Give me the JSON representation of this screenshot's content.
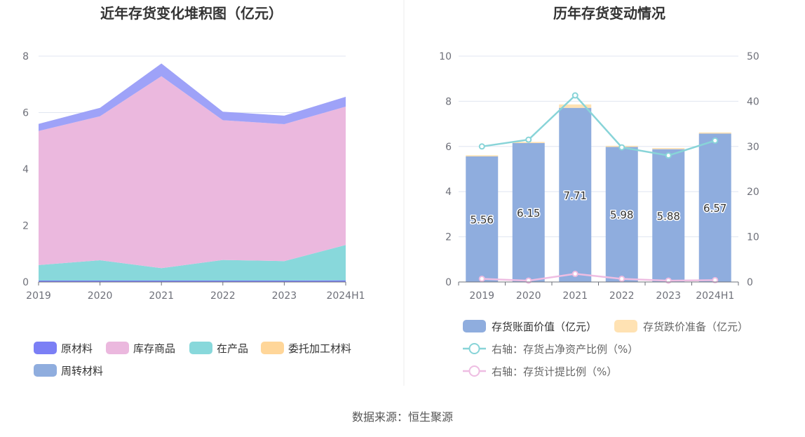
{
  "source_text": "数据来源：恒生聚源",
  "chart_data": [
    {
      "type": "area",
      "stacked": true,
      "title": "近年存货变化堆积图（亿元）",
      "categories": [
        "2019",
        "2020",
        "2021",
        "2022",
        "2023",
        "2024H1"
      ],
      "ylim": [
        0,
        8
      ],
      "yticks": [
        "0",
        "2",
        "4",
        "6",
        "8"
      ],
      "grid": true,
      "legend_position": "bottom",
      "series": [
        {
          "name": "原材料",
          "color": "#7b7ff5",
          "values": [
            0.05,
            0.05,
            0.05,
            0.05,
            0.05,
            0.06
          ]
        },
        {
          "name": "库存商品",
          "color": "#ebb8de",
          "values": [
            4.75,
            5.1,
            6.8,
            4.95,
            4.85,
            4.9
          ]
        },
        {
          "name": "在产品",
          "color": "#88d8db",
          "values": [
            0.55,
            0.72,
            0.44,
            0.73,
            0.69,
            1.25
          ]
        },
        {
          "name": "委托加工材料",
          "color": "#ffd699",
          "values": [
            0,
            0,
            0,
            0,
            0,
            0
          ]
        },
        {
          "name": "周转材料",
          "color": "#8fadde",
          "values": [
            0,
            0,
            0,
            0,
            0,
            0
          ]
        }
      ],
      "top_band_values": [
        0.25,
        0.3,
        0.45,
        0.3,
        0.3,
        0.35
      ],
      "top_band_color": "#9ea2f8"
    },
    {
      "type": "bar",
      "title": "历年存货变动情况",
      "categories": [
        "2019",
        "2020",
        "2021",
        "2022",
        "2023",
        "2024H1"
      ],
      "ylim_left": [
        0,
        10
      ],
      "yticks_left": [
        "0",
        "2",
        "4",
        "6",
        "8",
        "10"
      ],
      "ylim_right": [
        0,
        50
      ],
      "yticks_right": [
        "0",
        "10",
        "20",
        "30",
        "40",
        "50"
      ],
      "grid": true,
      "legend_position": "bottom",
      "bars": [
        {
          "name": "存货账面价值（亿元）",
          "color": "#8fadde",
          "values": [
            5.56,
            6.15,
            7.71,
            5.98,
            5.88,
            6.57
          ],
          "labels": [
            "5.56",
            "6.15",
            "7.71",
            "5.98",
            "5.88",
            "6.57"
          ]
        },
        {
          "name": "存货跌价准备（亿元）",
          "color": "#ffe2b3",
          "values": [
            0.05,
            0.05,
            0.15,
            0.05,
            0.05,
            0.05
          ]
        }
      ],
      "lines": [
        {
          "name": "右轴：存货占净资产比例（%）",
          "color": "#88d4d8",
          "values": [
            30.0,
            31.5,
            41.3,
            29.8,
            28.0,
            31.3
          ]
        },
        {
          "name": "右轴：存货计提比例（%）",
          "color": "#eebde2",
          "values": [
            0.7,
            0.3,
            1.8,
            0.7,
            0.3,
            0.4
          ]
        }
      ]
    }
  ]
}
